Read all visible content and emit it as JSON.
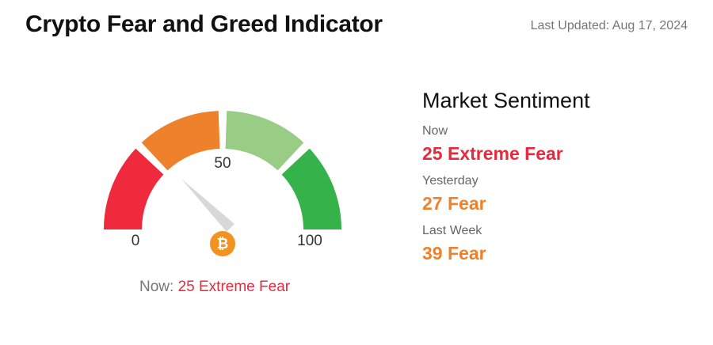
{
  "header": {
    "title": "Crypto Fear and Greed Indicator",
    "last_updated": "Last Updated: Aug 17, 2024"
  },
  "chart_data": {
    "type": "gauge",
    "value": 25,
    "classification": "Extreme Fear",
    "caption": "Now:",
    "color": "#e8283d",
    "ylim": [
      0,
      100
    ],
    "yticks": [
      0,
      50,
      100
    ],
    "bands": [
      {
        "from": 0,
        "to": 25,
        "color": "#ee2a3c"
      },
      {
        "from": 25,
        "to": 50,
        "color": "#f0812c"
      },
      {
        "from": 50,
        "to": 75,
        "color": "#99cc85"
      },
      {
        "from": 75,
        "to": 100,
        "color": "#35b24a"
      }
    ]
  },
  "sentiment": {
    "title": "Market Sentiment",
    "items": [
      {
        "label": "Now",
        "value": 25,
        "classification": "Extreme Fear",
        "color": "#e8283d"
      },
      {
        "label": "Yesterday",
        "value": 27,
        "classification": "Fear",
        "color": "#f0812c"
      },
      {
        "label": "Last Week",
        "value": 39,
        "classification": "Fear",
        "color": "#f0812c"
      }
    ]
  }
}
